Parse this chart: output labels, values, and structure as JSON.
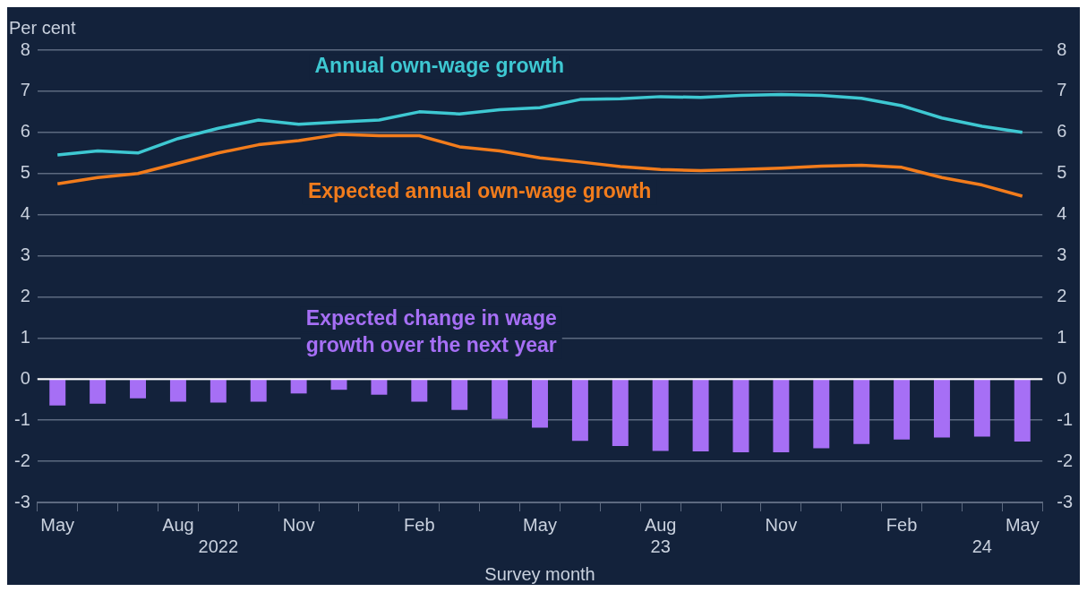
{
  "chart_data": {
    "type": "bar",
    "ylabel": "Per cent",
    "xlabel": "Survey month",
    "categories": [
      "May",
      null,
      null,
      "Aug",
      "\n2022",
      null,
      "Nov",
      null,
      null,
      "Feb",
      null,
      null,
      "May",
      null,
      null,
      "Aug\n23",
      null,
      null,
      "Nov",
      null,
      null,
      "Feb",
      null,
      "\n24",
      "May"
    ],
    "series": [
      {
        "name": "Expected change in wage\ngrowth over the next year",
        "color": "#a66ff5",
        "values": [
          -0.64,
          -0.6,
          -0.47,
          -0.55,
          -0.57,
          -0.55,
          -0.35,
          -0.26,
          -0.38,
          -0.55,
          -0.75,
          -0.97,
          -1.18,
          -1.5,
          -1.63,
          -1.75,
          -1.76,
          -1.78,
          -1.78,
          -1.68,
          -1.58,
          -1.47,
          -1.42,
          -1.4,
          -1.52
        ]
      },
      {
        "name": "Annual own-wage growth",
        "type": "line",
        "color": "#3ec8d2",
        "values": [
          5.45,
          5.55,
          5.5,
          5.85,
          6.1,
          6.3,
          6.2,
          6.25,
          6.3,
          6.5,
          6.45,
          6.55,
          6.6,
          6.8,
          6.82,
          6.87,
          6.85,
          6.9,
          6.92,
          6.9,
          6.83,
          6.65,
          6.35,
          6.15,
          6.0
        ]
      },
      {
        "name": "Expected annual own-wage growth",
        "type": "line",
        "color": "#f27c1c",
        "values": [
          4.75,
          4.9,
          5.0,
          5.25,
          5.5,
          5.7,
          5.8,
          5.95,
          5.92,
          5.92,
          5.65,
          5.55,
          5.38,
          5.28,
          5.17,
          5.1,
          5.07,
          5.1,
          5.13,
          5.18,
          5.2,
          5.15,
          4.9,
          4.72,
          4.45
        ]
      }
    ],
    "ylim": [
      -3,
      8
    ],
    "yticks": [
      -3,
      -2,
      -1,
      0,
      1,
      2,
      3,
      4,
      5,
      6,
      7,
      8
    ],
    "y2lim": [
      -3,
      8
    ],
    "y2ticks": [
      -3,
      -2,
      -1,
      0,
      1,
      2,
      3,
      4,
      5,
      6,
      7,
      8
    ],
    "ref_lines": [
      {
        "axis": "y",
        "value": 0,
        "color": "#ffffff"
      }
    ],
    "grid": "y",
    "legend": false,
    "marker": "none",
    "line_style": "solid"
  }
}
